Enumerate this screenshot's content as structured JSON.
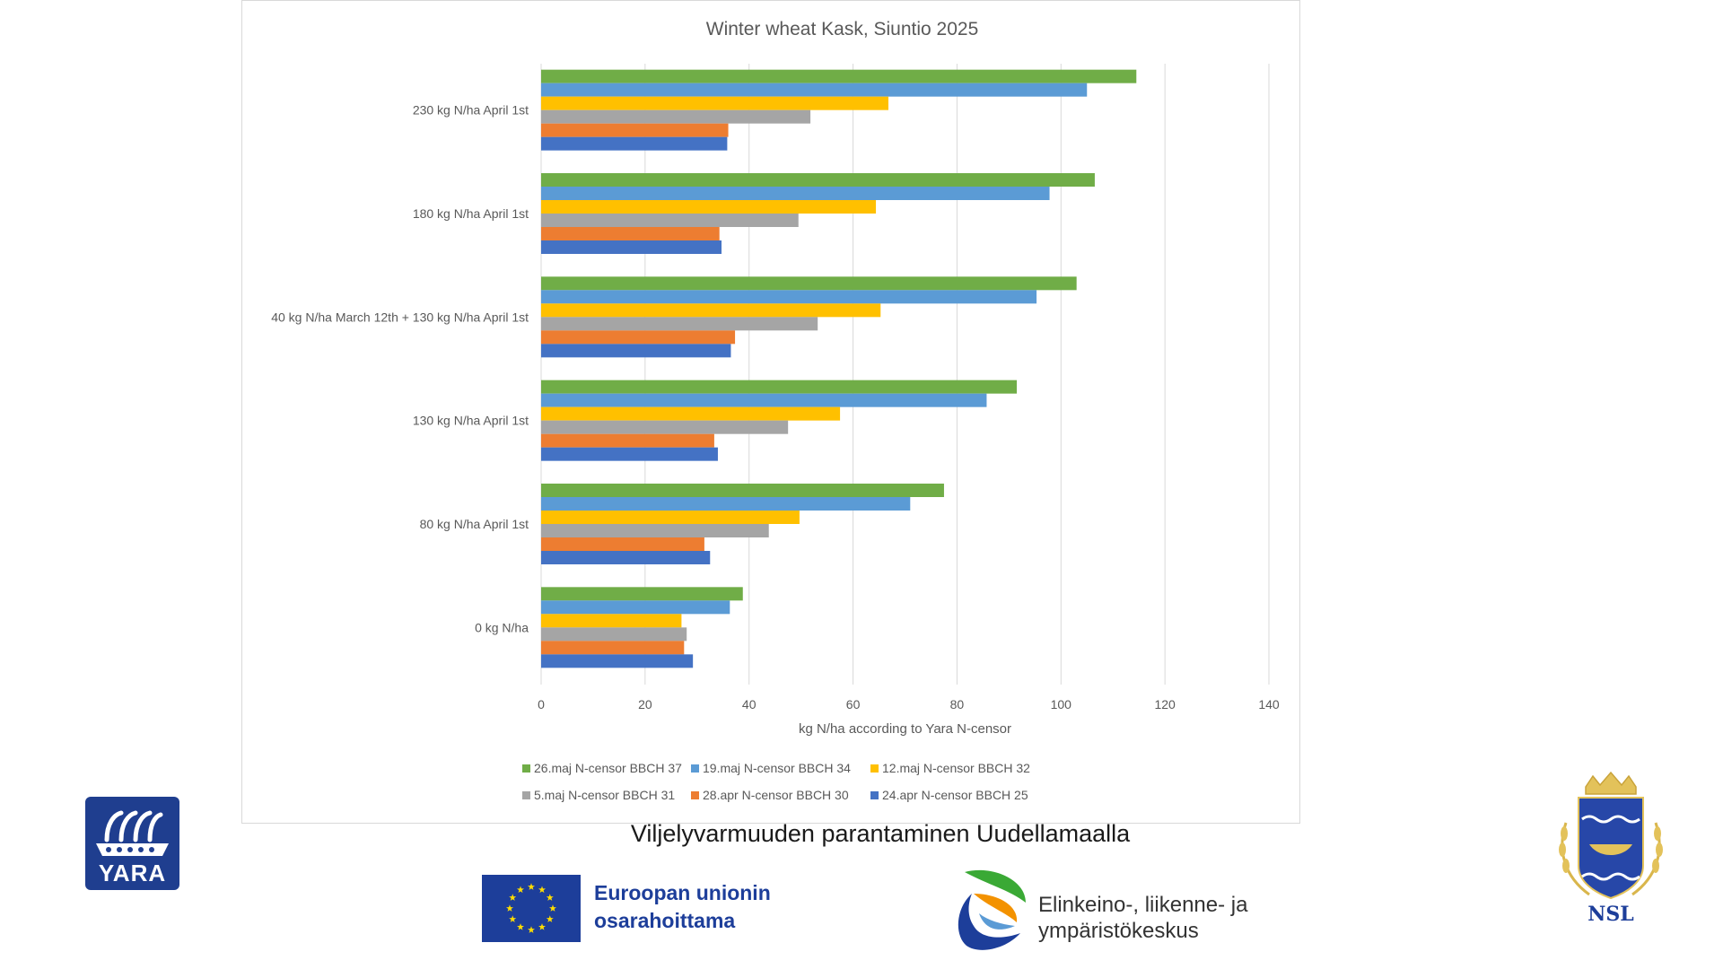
{
  "chart_data": {
    "type": "bar",
    "orientation": "horizontal",
    "title": "Winter wheat Kask, Siuntio 2025",
    "xlabel": "kg N/ha according to Yara N-censor",
    "ylabel": "",
    "xlim": [
      0,
      140
    ],
    "xticks": [
      0,
      20,
      40,
      60,
      80,
      100,
      120,
      140
    ],
    "grid": "vertical",
    "legend_position": "bottom",
    "categories": [
      "230 kg N/ha April 1st",
      "180 kg N/ha April 1st",
      "40 kg N/ha March 12th + 130 kg N/ha April 1st",
      "130 kg N/ha April 1st",
      "80 kg N/ha April 1st",
      "0 kg N/ha"
    ],
    "series": [
      {
        "name": "26.maj N-censor BBCH 37",
        "color": "#70ad47",
        "values": [
          114.5,
          106.5,
          103,
          91.5,
          77.5,
          38.8
        ]
      },
      {
        "name": "19.maj N-censor BBCH 34",
        "color": "#5b9bd5",
        "values": [
          105,
          97.8,
          95.3,
          85.7,
          71,
          36.3
        ]
      },
      {
        "name": "12.maj N-censor BBCH 32",
        "color": "#ffc000",
        "values": [
          66.8,
          64.4,
          65.3,
          57.5,
          49.7,
          27
        ]
      },
      {
        "name": "5.maj N-censor BBCH 31",
        "color": "#a5a5a5",
        "values": [
          51.8,
          49.5,
          53.2,
          47.5,
          43.8,
          28
        ]
      },
      {
        "name": "28.apr N-censor BBCH 30",
        "color": "#ed7d31",
        "values": [
          36,
          34.3,
          37.3,
          33.3,
          31.4,
          27.5
        ]
      },
      {
        "name": "24.apr N-censor BBCH 25",
        "color": "#4472c4",
        "values": [
          35.8,
          34.7,
          36.5,
          34,
          32.5,
          29.2
        ]
      }
    ],
    "legend_order": [
      "26.maj N-censor BBCH 37",
      "19.maj N-censor BBCH 34",
      "12.maj N-censor BBCH 32",
      "5.maj N-censor BBCH 31",
      "28.apr N-censor BBCH 30",
      "24.apr N-censor BBCH 25"
    ]
  },
  "footer": {
    "project_title": "Viljelyvarmuuden parantaminen Uudellamaalla",
    "eu_line1": "Euroopan unionin",
    "eu_line2": "osarahoittama",
    "ely_line1": "Elinkeino-, liikenne- ja",
    "ely_line2": "ympäristökeskus",
    "yara_text": "YARA",
    "nsl_text": "NSL"
  }
}
